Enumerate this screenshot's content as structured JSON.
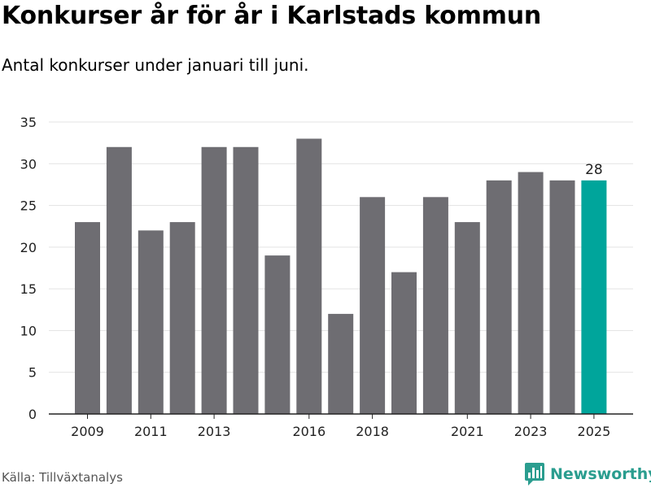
{
  "chart_data": {
    "type": "bar",
    "title": "Konkurser år för år i Karlstads kommun",
    "subtitle": "Antal konkurser under januari till juni.",
    "categories": [
      "2009",
      "2010",
      "2011",
      "2012",
      "2013",
      "2014",
      "2015",
      "2016",
      "2017",
      "2018",
      "2019",
      "2020",
      "2021",
      "2022",
      "2023",
      "2024",
      "2025"
    ],
    "values": [
      23,
      32,
      22,
      23,
      32,
      32,
      19,
      33,
      12,
      26,
      17,
      26,
      23,
      28,
      29,
      28,
      28
    ],
    "x_tick_labels": [
      "2009",
      "2011",
      "2013",
      "2016",
      "2018",
      "2021",
      "2023",
      "2025"
    ],
    "y_ticks": [
      0,
      5,
      10,
      15,
      20,
      25,
      30,
      35
    ],
    "ylim": [
      0,
      35
    ],
    "xlabel": "",
    "ylabel": "",
    "highlight": {
      "category": "2025",
      "label": "28"
    },
    "grid": true,
    "colors": {
      "bar": "#6e6d72",
      "highlight": "#00a59b",
      "grid": "#e3e3e3"
    }
  },
  "source": "Källa: Tillväxtanalys",
  "brand": {
    "name": "Newsworthy",
    "icon": "bar-chart-logo-icon",
    "color": "#2a9d8f"
  }
}
